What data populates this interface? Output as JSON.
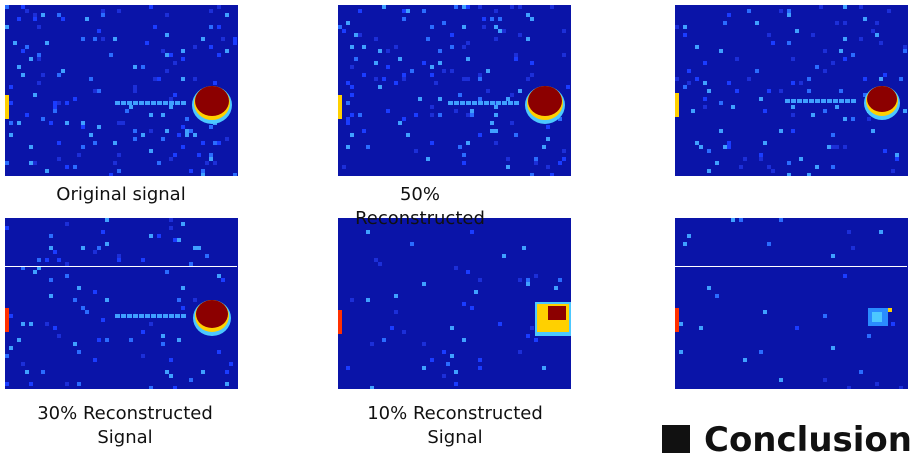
{
  "panels": [
    {
      "caption": "Original signal"
    },
    {
      "caption": "50% Reconstructed"
    },
    {
      "caption": null
    },
    {
      "caption": "30% Reconstructed Signal"
    },
    {
      "caption": "10% Reconstructed Signal"
    },
    {
      "caption": null
    }
  ],
  "footer": {
    "heading": "Conclusion"
  }
}
